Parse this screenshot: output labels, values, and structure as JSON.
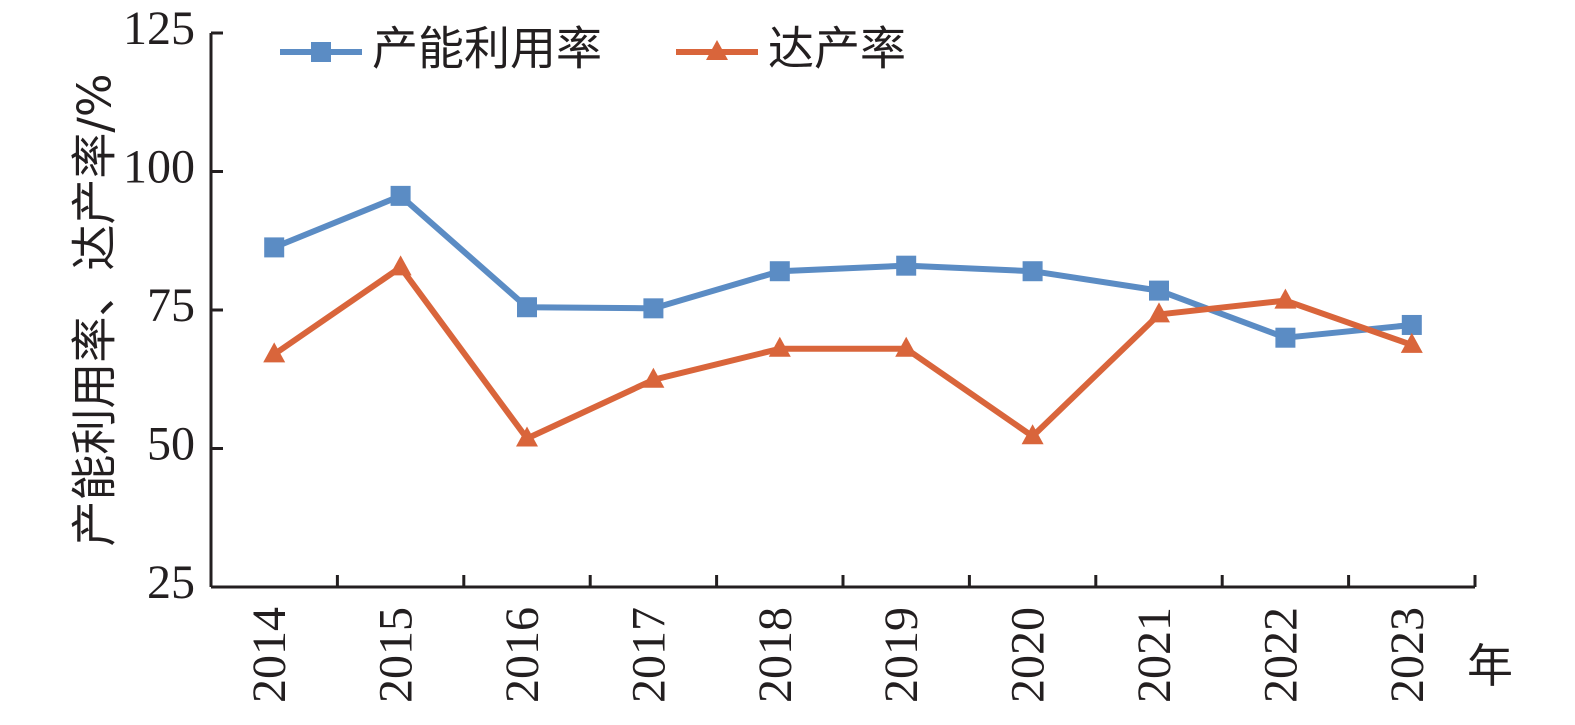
{
  "chart_data": {
    "type": "line",
    "categories": [
      "2014",
      "2015",
      "2016",
      "2017",
      "2018",
      "2019",
      "2020",
      "2021",
      "2022",
      "2023"
    ],
    "series": [
      {
        "name": "产能利用率",
        "color": "#5b8cc4",
        "marker": "square",
        "values": [
          86.3,
          95.6,
          75.5,
          75.3,
          82.0,
          83.0,
          82.0,
          78.5,
          70.0,
          72.3
        ]
      },
      {
        "name": "达产率",
        "color": "#d9653b",
        "marker": "triangle",
        "values": [
          67.0,
          82.7,
          51.8,
          62.4,
          68.0,
          68.0,
          52.2,
          74.2,
          76.7,
          68.7
        ]
      }
    ],
    "ylabel": "产能利用率、达产率/%",
    "xlabel": "年",
    "ylim": [
      25,
      125
    ],
    "yticks": [
      25,
      50,
      75,
      100,
      125
    ],
    "grid": false,
    "legend": "top-left"
  }
}
